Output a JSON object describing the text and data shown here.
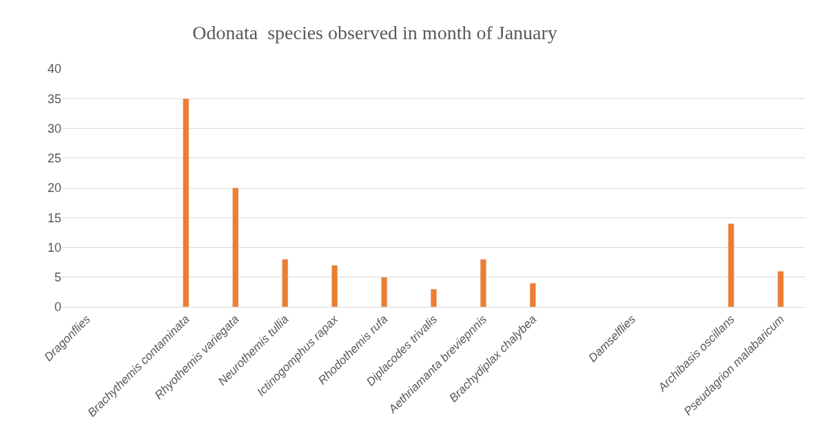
{
  "chart_data": {
    "type": "bar",
    "title": "Odonata  species observed in month of January",
    "categories": [
      "Dragonflies",
      null,
      "Brachythemis contaminata",
      "Rhyothemis variegata",
      "Neurothemis tullia",
      "Ictinogomphus rapax",
      "Rhodothemis rufa",
      "Diplacodes trivalis",
      "Aethriamanta breviepnnis",
      "Brachydiplax chalybea",
      null,
      "Damselflies",
      null,
      "Archibasis oscillans",
      "Pseudagrion malabaricum"
    ],
    "values": [
      null,
      null,
      35,
      20,
      8,
      7,
      5,
      3,
      8,
      4,
      null,
      null,
      null,
      14,
      6
    ],
    "color": "#ed7d31",
    "ylim": [
      0,
      40
    ],
    "yticks": [
      0,
      5,
      10,
      15,
      20,
      25,
      30,
      35,
      40
    ],
    "grid": "y"
  }
}
